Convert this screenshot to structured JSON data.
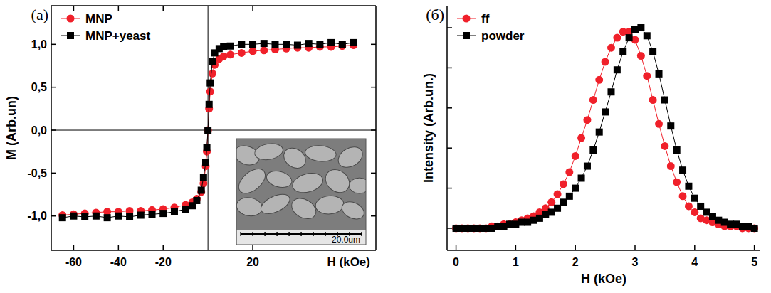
{
  "chart_data": [
    {
      "type": "line",
      "title": "(a)",
      "x_label": "H (kOe)",
      "y_label": "M (Arb.un)",
      "x": [
        -65,
        -60,
        -55,
        -50,
        -45,
        -40,
        -35,
        -30,
        -25,
        -20,
        -15,
        -10,
        -7,
        -5,
        -3,
        -2,
        -1,
        -0.5,
        0,
        0.5,
        1,
        2,
        3,
        5,
        7,
        10,
        15,
        20,
        25,
        30,
        35,
        40,
        45,
        50,
        55,
        60,
        65
      ],
      "series": [
        {
          "name": "MNP",
          "color": "#f0202a",
          "marker": "circle",
          "line_style": "solid",
          "values": [
            -0.99,
            -0.98,
            -0.97,
            -0.96,
            -0.95,
            -0.95,
            -0.94,
            -0.94,
            -0.93,
            -0.92,
            -0.9,
            -0.87,
            -0.84,
            -0.8,
            -0.72,
            -0.62,
            -0.42,
            -0.25,
            0.0,
            0.25,
            0.45,
            0.66,
            0.76,
            0.83,
            0.86,
            0.88,
            0.9,
            0.92,
            0.93,
            0.94,
            0.95,
            0.96,
            0.96,
            0.97,
            0.97,
            0.98,
            0.99
          ]
        },
        {
          "name": "MNP+yeast",
          "color": "#000000",
          "marker": "square",
          "line_style": "solid",
          "values": [
            -1.02,
            -1.0,
            -1.01,
            -1.0,
            -1.02,
            -1.0,
            -1.01,
            -0.99,
            -0.98,
            -0.97,
            -0.95,
            -0.92,
            -0.88,
            -0.82,
            -0.7,
            -0.55,
            -0.38,
            -0.2,
            0.0,
            0.3,
            0.55,
            0.8,
            0.9,
            0.95,
            0.97,
            0.98,
            1.0,
            1.0,
            1.01,
            1.0,
            1.0,
            0.99,
            1.01,
            1.0,
            1.02,
            1.0,
            1.02
          ]
        }
      ],
      "xlim": [
        -70,
        75
      ],
      "xticks": [
        -60,
        -40,
        -20,
        20
      ],
      "ylim": [
        -1.4,
        1.45
      ],
      "yticks": [
        {
          "value": -1,
          "label": "-1,0"
        },
        {
          "value": -0.5,
          "label": "-0,5"
        },
        {
          "value": 0,
          "label": "0,0"
        },
        {
          "value": 0.5,
          "label": "0,5"
        },
        {
          "value": 1,
          "label": "1,0"
        }
      ],
      "grid": false,
      "legend": "upper left",
      "annotations": [
        {
          "text": "20.0um"
        }
      ]
    },
    {
      "type": "line",
      "title": "(б)",
      "x_label": "H (kOe)",
      "y_label": "Intensity (Arb.un.)",
      "x": [
        0,
        0.1,
        0.2,
        0.3,
        0.4,
        0.5,
        0.6,
        0.7,
        0.8,
        0.9,
        1.0,
        1.1,
        1.2,
        1.3,
        1.4,
        1.5,
        1.6,
        1.7,
        1.8,
        1.9,
        2.0,
        2.1,
        2.2,
        2.3,
        2.4,
        2.5,
        2.6,
        2.7,
        2.8,
        2.9,
        3.0,
        3.1,
        3.2,
        3.3,
        3.4,
        3.5,
        3.6,
        3.7,
        3.8,
        3.9,
        4.0,
        4.1,
        4.2,
        4.3,
        4.4,
        4.5,
        4.6,
        4.7,
        4.8,
        4.9,
        5.0
      ],
      "series": [
        {
          "name": "ff",
          "color": "#f0202a",
          "marker": "circle",
          "line_style": "solid",
          "values": [
            0,
            0,
            0,
            0,
            0,
            0,
            0.01,
            0.01,
            0.02,
            0.02,
            0.03,
            0.04,
            0.05,
            0.06,
            0.08,
            0.1,
            0.13,
            0.17,
            0.22,
            0.28,
            0.36,
            0.45,
            0.54,
            0.64,
            0.74,
            0.83,
            0.9,
            0.95,
            0.98,
            0.98,
            0.94,
            0.86,
            0.76,
            0.64,
            0.52,
            0.41,
            0.31,
            0.23,
            0.16,
            0.11,
            0.08,
            0.05,
            0.04,
            0.03,
            0.02,
            0.01,
            0.01,
            0.01,
            0,
            0,
            0
          ]
        },
        {
          "name": "powder",
          "color": "#000000",
          "marker": "square",
          "line_style": "solid",
          "values": [
            0,
            0,
            0,
            0,
            0,
            0,
            0,
            0.01,
            0.01,
            0.02,
            0.02,
            0.03,
            0.03,
            0.04,
            0.05,
            0.07,
            0.08,
            0.1,
            0.13,
            0.16,
            0.2,
            0.25,
            0.31,
            0.39,
            0.48,
            0.58,
            0.68,
            0.79,
            0.88,
            0.95,
            0.99,
            1.0,
            0.96,
            0.88,
            0.77,
            0.64,
            0.51,
            0.39,
            0.29,
            0.21,
            0.15,
            0.11,
            0.08,
            0.06,
            0.04,
            0.03,
            0.02,
            0.02,
            0.01,
            0.01,
            0
          ]
        }
      ],
      "xlim": [
        -0.15,
        5.1
      ],
      "xticks": [
        0,
        1,
        2,
        3,
        4,
        5
      ],
      "ylim": [
        -0.11,
        1.11
      ],
      "yticks": [
        0,
        0.2,
        0.4,
        0.6,
        0.8,
        1.0
      ],
      "grid": false,
      "legend": "upper left",
      "tick_labels": "x"
    }
  ]
}
